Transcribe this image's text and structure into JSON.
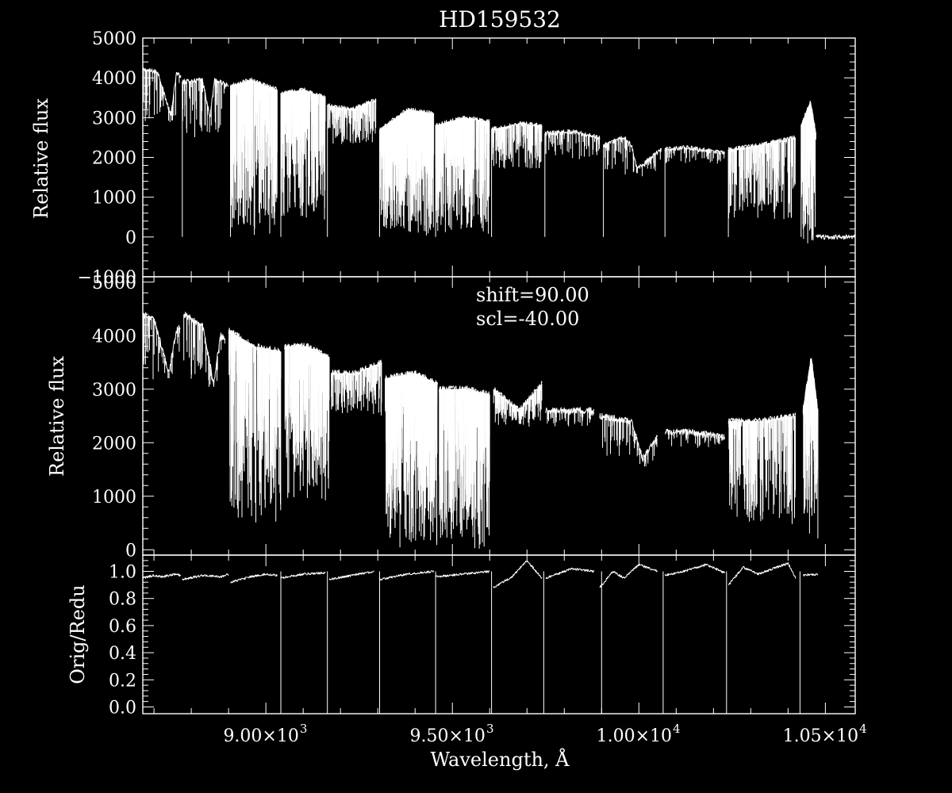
{
  "chart_data": {
    "title": "HD159532",
    "xlabel": "Wavelength, Å",
    "xlim": [
      8670,
      10580
    ],
    "x_ticks": [
      {
        "value": 9000,
        "mantissa": "9.00×10",
        "exp": "3"
      },
      {
        "value": 9500,
        "mantissa": "9.50×10",
        "exp": "3"
      },
      {
        "value": 10000,
        "mantissa": "1.00×10",
        "exp": "4"
      },
      {
        "value": 10500,
        "mantissa": "1.05×10",
        "exp": "4"
      }
    ],
    "annotation": [
      "shift=90.00",
      "scl=-40.00"
    ],
    "panels": [
      {
        "type": "line",
        "ylabel": "Relative flux",
        "ylim": [
          -1000,
          5000
        ],
        "yticks": [
          -1000,
          0,
          1000,
          2000,
          3000,
          4000,
          5000
        ],
        "yticklabels": [
          "−1000",
          "0",
          "1000",
          "2000",
          "3000",
          "4000",
          "5000"
        ],
        "segments": [
          {
            "x": [
              8670,
              8710,
              8745,
              8760,
              8772
            ],
            "y": [
              4200,
              4150,
              3050,
              4100,
              4050
            ],
            "absorb": 40,
            "min": 2800
          },
          {
            "x": [
              8776,
              8830,
              8850,
              8862,
              8900
            ],
            "y": [
              3900,
              3950,
              3000,
              3950,
              3800
            ],
            "absorb": 60,
            "min": 2500
          },
          {
            "x": [
              8905,
              8960,
              9000,
              9030
            ],
            "y": [
              3800,
              3950,
              3800,
              3700
            ],
            "absorb": 320,
            "min": 0
          },
          {
            "x": [
              9040,
              9100,
              9160
            ],
            "y": [
              3600,
              3700,
              3500
            ],
            "absorb": 320,
            "min": 400
          },
          {
            "x": [
              9165,
              9230,
              9295
            ],
            "y": [
              3300,
              3200,
              3450
            ],
            "absorb": 160,
            "min": 2300
          },
          {
            "x": [
              9305,
              9380,
              9450
            ],
            "y": [
              2700,
              3200,
              3100
            ],
            "absorb": 480,
            "min": 0
          },
          {
            "x": [
              9455,
              9530,
              9600
            ],
            "y": [
              2800,
              3000,
              2900
            ],
            "absorb": 360,
            "min": 0
          },
          {
            "x": [
              9605,
              9680,
              9740
            ],
            "y": [
              2700,
              2850,
              2800
            ],
            "absorb": 160,
            "min": 1700
          },
          {
            "x": [
              9748,
              9820,
              9895
            ],
            "y": [
              2600,
              2650,
              2500
            ],
            "absorb": 60,
            "min": 1900
          },
          {
            "x": [
              9905,
              9960,
              9980,
              9995,
              10060
            ],
            "y": [
              2300,
              2500,
              2300,
              1700,
              2200
            ],
            "absorb": 60,
            "min": 1500
          },
          {
            "x": [
              10070,
              10130,
              10230
            ],
            "y": [
              2200,
              2250,
              2100
            ],
            "absorb": 50,
            "min": 1800
          },
          {
            "x": [
              10240,
              10320,
              10420
            ],
            "y": [
              2200,
              2300,
              2500
            ],
            "absorb": 220,
            "min": 400
          },
          {
            "x": [
              10435,
              10460,
              10475
            ],
            "y": [
              2800,
              3400,
              2600
            ],
            "absorb": 90,
            "min": -500
          },
          {
            "x": [
              10475,
              10580
            ],
            "y": [
              0,
              0
            ],
            "absorb": 0,
            "min": 0
          }
        ]
      },
      {
        "type": "line",
        "ylabel": "Relative flux",
        "ylim": [
          -100,
          5100
        ],
        "yticks": [
          0,
          1000,
          2000,
          3000,
          4000,
          5000
        ],
        "yticklabels": [
          "0",
          "1000",
          "2000",
          "3000",
          "4000",
          "5000"
        ],
        "segments": [
          {
            "x": [
              8670,
              8700,
              8740,
              8760,
              8770
            ],
            "y": [
              4400,
              4300,
              3300,
              4100,
              4150
            ],
            "absorb": 40,
            "min": 3100
          },
          {
            "x": [
              8780,
              8830,
              8860,
              8878,
              8890
            ],
            "y": [
              4400,
              4200,
              3100,
              4000,
              3950
            ],
            "absorb": 50,
            "min": 3000
          },
          {
            "x": [
              8900,
              8970,
              9040
            ],
            "y": [
              4100,
              3800,
              3700
            ],
            "absorb": 320,
            "min": 500
          },
          {
            "x": [
              9050,
              9110,
              9170
            ],
            "y": [
              3800,
              3800,
              3600
            ],
            "absorb": 300,
            "min": 900
          },
          {
            "x": [
              9175,
              9240,
              9310
            ],
            "y": [
              3300,
              3300,
              3500
            ],
            "absorb": 160,
            "min": 2500
          },
          {
            "x": [
              9320,
              9400,
              9460
            ],
            "y": [
              3200,
              3300,
              3100
            ],
            "absorb": 480,
            "min": 0
          },
          {
            "x": [
              9465,
              9540,
              9600
            ],
            "y": [
              3000,
              3000,
              2900
            ],
            "absorb": 360,
            "min": 0
          },
          {
            "x": [
              9610,
              9680,
              9740
            ],
            "y": [
              3000,
              2600,
              3100
            ],
            "absorb": 160,
            "min": 2300
          },
          {
            "x": [
              9750,
              9820,
              9880
            ],
            "y": [
              2600,
              2600,
              2600
            ],
            "absorb": 60,
            "min": 2300
          },
          {
            "x": [
              9895,
              9980,
              10010,
              10050
            ],
            "y": [
              2500,
              2400,
              1700,
              2100
            ],
            "absorb": 60,
            "min": 1500
          },
          {
            "x": [
              10070,
              10140,
              10230
            ],
            "y": [
              2200,
              2200,
              2100
            ],
            "absorb": 50,
            "min": 1900
          },
          {
            "x": [
              10240,
              10320,
              10420
            ],
            "y": [
              2400,
              2400,
              2500
            ],
            "absorb": 220,
            "min": 400
          },
          {
            "x": [
              10440,
              10462,
              10480
            ],
            "y": [
              2600,
              3600,
              2600
            ],
            "absorb": 90,
            "min": 200
          }
        ]
      },
      {
        "type": "line",
        "ylabel": "Orig/Redu",
        "ylim": [
          -0.05,
          1.12
        ],
        "yticks": [
          0.0,
          0.2,
          0.4,
          0.6,
          0.8,
          1.0
        ],
        "yticklabels": [
          "0.0",
          "0.2",
          "0.4",
          "0.6",
          "0.8",
          "1.0"
        ],
        "segments": [
          {
            "x": [
              8670,
              8700,
              8720,
              8760,
              8772
            ],
            "y": [
              0.95,
              0.97,
              0.96,
              0.98,
              0.97
            ],
            "absorb": 0,
            "min": 0.9
          },
          {
            "x": [
              8776,
              8830,
              8880,
              8900
            ],
            "y": [
              0.94,
              0.97,
              0.96,
              0.98
            ],
            "absorb": 0,
            "min": 0.9
          },
          {
            "x": [
              8905,
              8960,
              9000,
              9030
            ],
            "y": [
              0.92,
              0.96,
              0.98,
              0.97
            ],
            "absorb": 0,
            "min": 0.9
          },
          {
            "x": [
              9040,
              9100,
              9160
            ],
            "y": [
              0.95,
              0.98,
              0.99
            ],
            "absorb": 0,
            "min": 0.9
          },
          {
            "x": [
              9170,
              9230,
              9290
            ],
            "y": [
              0.94,
              0.97,
              1.0
            ],
            "absorb": 0,
            "min": 0.9
          },
          {
            "x": [
              9305,
              9380,
              9450
            ],
            "y": [
              0.94,
              0.98,
              1.0
            ],
            "absorb": 0,
            "min": 0.9
          },
          {
            "x": [
              9455,
              9530,
              9600
            ],
            "y": [
              0.96,
              0.98,
              1.0
            ],
            "absorb": 0,
            "min": 0.9
          },
          {
            "x": [
              9610,
              9660,
              9700,
              9740
            ],
            "y": [
              0.88,
              0.96,
              1.08,
              0.95
            ],
            "absorb": 0,
            "min": 0.85
          },
          {
            "x": [
              9750,
              9820,
              9880
            ],
            "y": [
              0.95,
              1.02,
              1.0
            ],
            "absorb": 0,
            "min": 0.9
          },
          {
            "x": [
              9895,
              9930,
              9960,
              10000,
              10050
            ],
            "y": [
              0.88,
              1.0,
              0.95,
              1.05,
              1.0
            ],
            "absorb": 0,
            "min": 0.85
          },
          {
            "x": [
              10070,
              10120,
              10180,
              10230
            ],
            "y": [
              0.97,
              1.0,
              1.05,
              0.99
            ],
            "absorb": 0,
            "min": 0.9
          },
          {
            "x": [
              10240,
              10280,
              10320,
              10400,
              10420
            ],
            "y": [
              0.9,
              1.03,
              0.98,
              1.06,
              0.95
            ],
            "absorb": 0,
            "min": 0.85
          },
          {
            "x": [
              10440,
              10480
            ],
            "y": [
              0.97,
              0.98
            ],
            "absorb": 0,
            "min": 0.9
          }
        ]
      }
    ],
    "ratio_drops": [
      9040,
      9165,
      9305,
      9455,
      9605,
      9745,
      9900,
      10065,
      10235,
      10432
    ]
  }
}
